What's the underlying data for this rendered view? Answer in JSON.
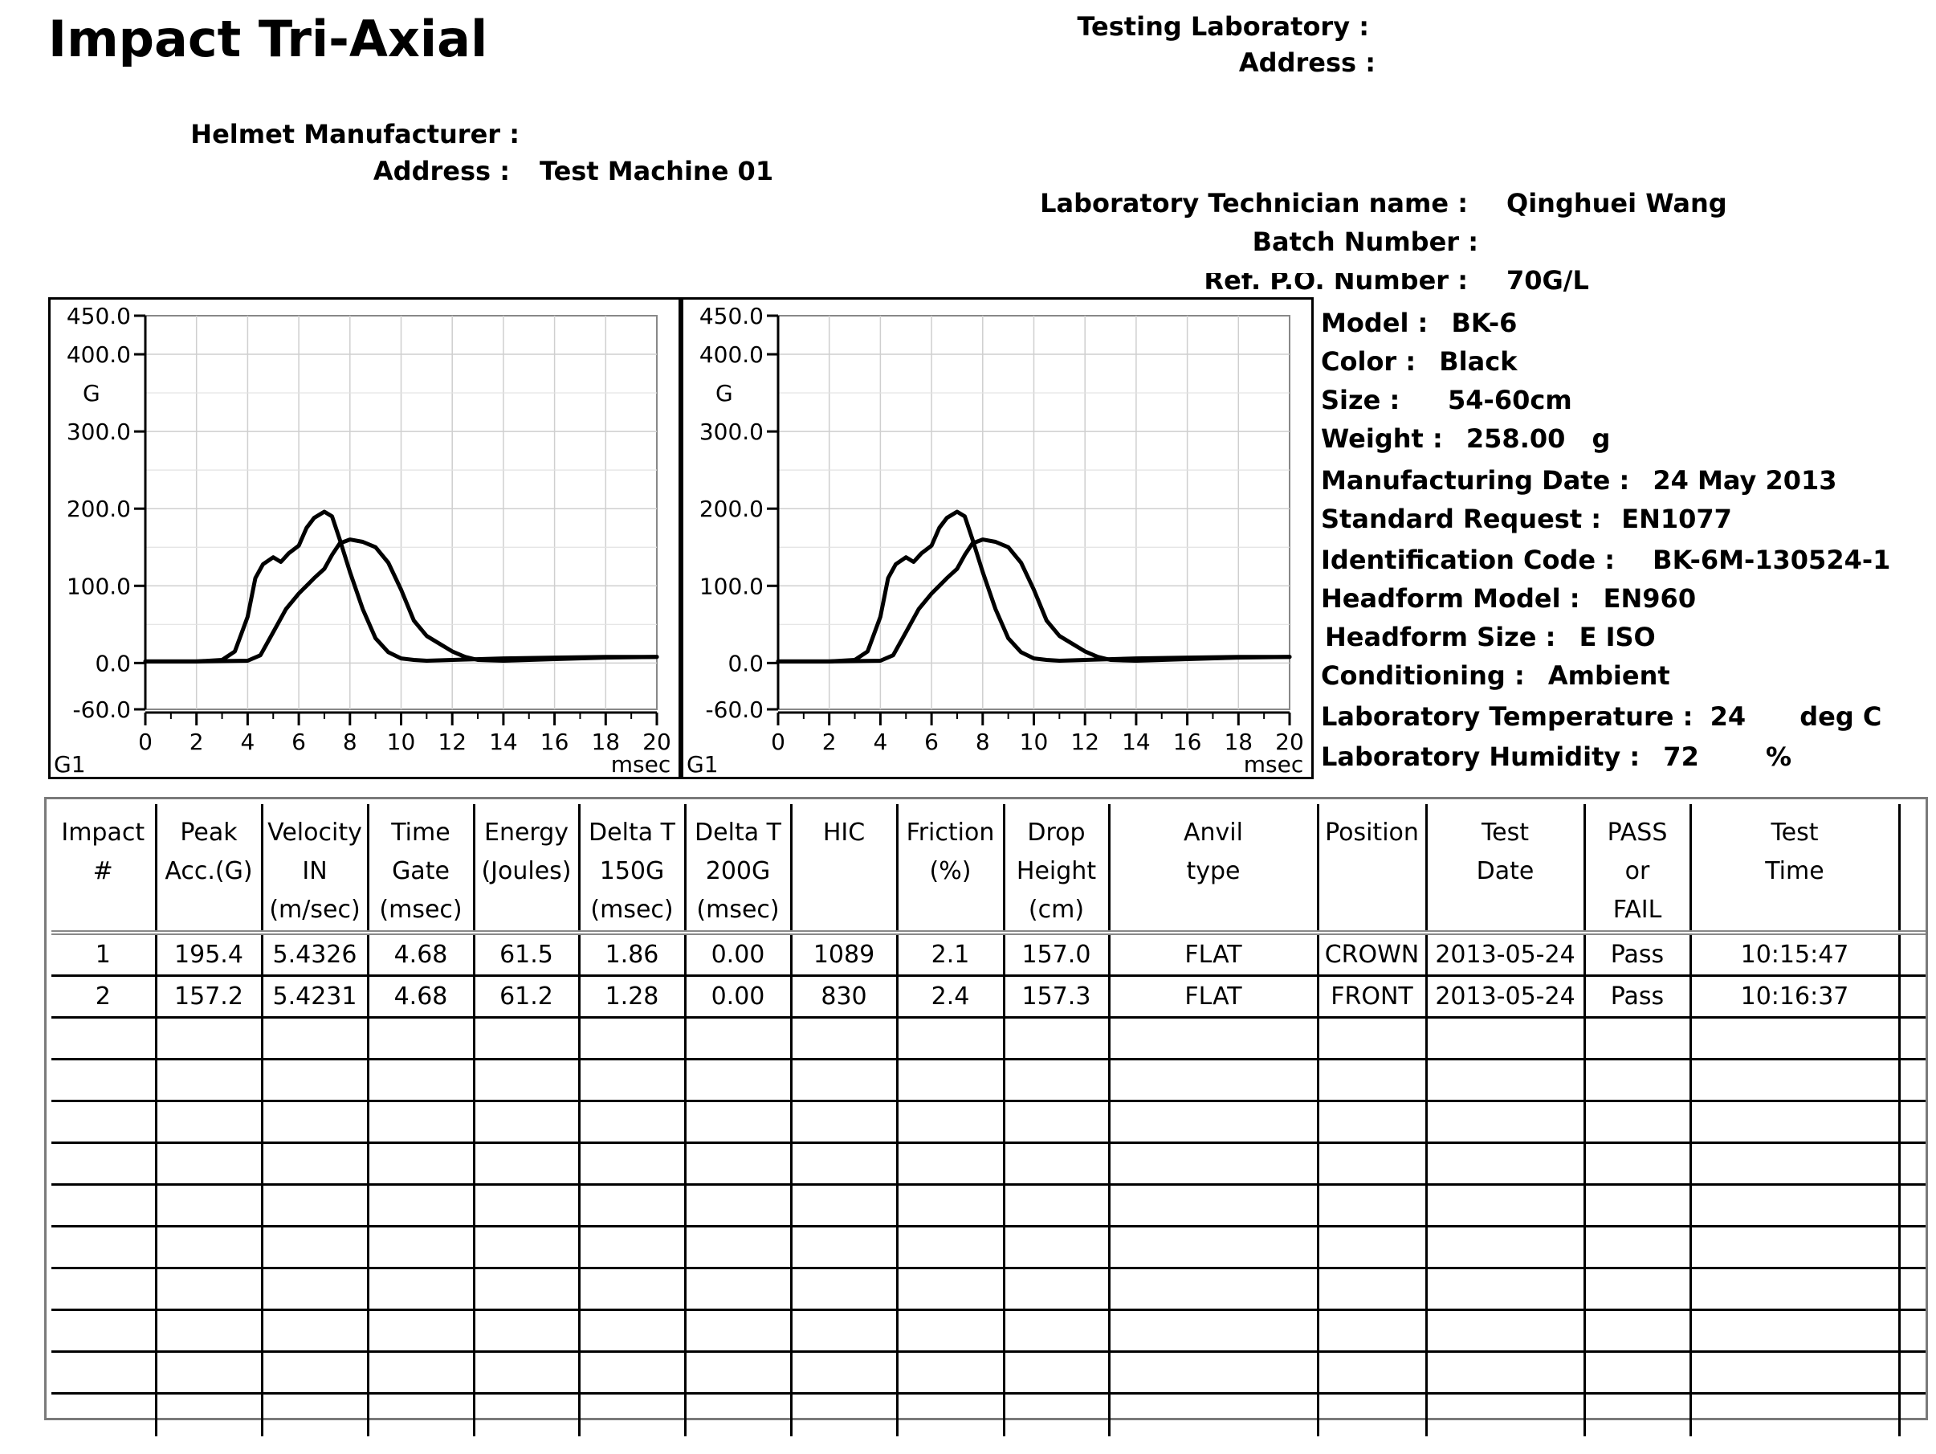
{
  "header": {
    "title": "Impact Tri-Axial",
    "testing_lab_label": "Testing Laboratory :",
    "lab_address_label": "Address :",
    "helmet_mfr_label": "Helmet Manufacturer :",
    "mfr_address_label": "Address :",
    "mfr_address_value": "Test Machine 01",
    "technician_label": "Laboratory Technician name :",
    "technician_value": "Qinghuei Wang",
    "batch_label": "Batch Number :",
    "ref_po_label": "Ref. P.O. Number :",
    "ref_po_value": "70G/L"
  },
  "specs": {
    "model_label": "Model :",
    "model_value": "BK-6",
    "color_label": "Color :",
    "color_value": "Black",
    "size_label": "Size :",
    "size_value": "54-60cm",
    "weight_label": "Weight :",
    "weight_value": "258.00",
    "weight_unit": "g",
    "mfg_date_label": "Manufacturing Date :",
    "mfg_date_value": "24 May 2013",
    "standard_label": "Standard Request :",
    "standard_value": "EN1077",
    "id_code_label": "Identification Code :",
    "id_code_value": "BK-6M-130524-1",
    "headform_model_label": "Headform Model :",
    "headform_model_value": "EN960",
    "headform_size_label": "Headform Size :",
    "headform_size_value": "E ISO",
    "conditioning_label": "Conditioning :",
    "conditioning_value": "Ambient",
    "temp_label": "Laboratory Temperature :",
    "temp_value": "24",
    "temp_unit": "deg C",
    "humidity_label": "Laboratory Humidity :",
    "humidity_value": "72",
    "humidity_unit": "%"
  },
  "chart_data": [
    {
      "type": "line",
      "title": "",
      "ylabel": "G",
      "xlabel": "msec",
      "corner_label": "G1",
      "xlim": [
        0,
        20
      ],
      "ylim": [
        -60,
        450
      ],
      "y_ticks": [
        "450.0",
        "400.0",
        "300.0",
        "200.0",
        "100.0",
        "0.0",
        "-60.0"
      ],
      "x_ticks": [
        "0",
        "2",
        "4",
        "6",
        "8",
        "10",
        "12",
        "14",
        "16",
        "18",
        "20"
      ],
      "grid": true,
      "series": [
        {
          "x": [
            0,
            2,
            3,
            3.5,
            4,
            4.3,
            4.6,
            5,
            5.3,
            5.6,
            6,
            6.3,
            6.6,
            7,
            7.3,
            7.6,
            8,
            8.5,
            9,
            9.5,
            10,
            10.5,
            11,
            12,
            14,
            16,
            18,
            20
          ],
          "y": [
            2,
            2,
            4,
            15,
            60,
            110,
            128,
            137,
            131,
            142,
            152,
            175,
            188,
            196,
            190,
            160,
            118,
            70,
            32,
            14,
            6,
            4,
            3,
            4,
            6,
            7,
            8,
            8
          ]
        },
        {
          "x": [
            0,
            2,
            4,
            4.5,
            5,
            5.5,
            6,
            6.3,
            6.6,
            7,
            7.3,
            7.6,
            8,
            8.5,
            9,
            9.5,
            10,
            10.5,
            11,
            11.5,
            12,
            12.5,
            13,
            14,
            16,
            18,
            20
          ],
          "y": [
            2,
            2,
            3,
            10,
            40,
            70,
            90,
            100,
            110,
            122,
            140,
            155,
            160,
            157,
            150,
            130,
            95,
            55,
            35,
            25,
            15,
            8,
            4,
            3,
            5,
            7,
            8
          ]
        }
      ]
    },
    {
      "type": "line",
      "title": "",
      "ylabel": "G",
      "xlabel": "msec",
      "corner_label": "G1",
      "xlim": [
        0,
        20
      ],
      "ylim": [
        -60,
        450
      ],
      "y_ticks": [
        "450.0",
        "400.0",
        "300.0",
        "200.0",
        "100.0",
        "0.0",
        "-60.0"
      ],
      "x_ticks": [
        "0",
        "2",
        "4",
        "6",
        "8",
        "10",
        "12",
        "14",
        "16",
        "18",
        "20"
      ],
      "grid": true,
      "series": [
        {
          "x": [
            0,
            2,
            3,
            3.5,
            4,
            4.3,
            4.6,
            5,
            5.3,
            5.6,
            6,
            6.3,
            6.6,
            7,
            7.3,
            7.6,
            8,
            8.5,
            9,
            9.5,
            10,
            10.5,
            11,
            12,
            14,
            16,
            18,
            20
          ],
          "y": [
            2,
            2,
            4,
            15,
            60,
            110,
            128,
            137,
            131,
            142,
            152,
            175,
            188,
            196,
            190,
            160,
            118,
            70,
            32,
            14,
            6,
            4,
            3,
            4,
            6,
            7,
            8,
            8
          ]
        },
        {
          "x": [
            0,
            2,
            4,
            4.5,
            5,
            5.5,
            6,
            6.3,
            6.6,
            7,
            7.3,
            7.6,
            8,
            8.5,
            9,
            9.5,
            10,
            10.5,
            11,
            11.5,
            12,
            12.5,
            13,
            14,
            16,
            18,
            20
          ],
          "y": [
            2,
            2,
            3,
            10,
            40,
            70,
            90,
            100,
            110,
            122,
            140,
            155,
            160,
            157,
            150,
            130,
            95,
            55,
            35,
            25,
            15,
            8,
            4,
            3,
            5,
            7,
            8
          ]
        }
      ]
    }
  ],
  "table": {
    "columns": [
      [
        "Impact",
        "#",
        ""
      ],
      [
        "Peak",
        "Acc.(G)",
        ""
      ],
      [
        "Velocity",
        "IN",
        "(m/sec)"
      ],
      [
        "Time",
        "Gate",
        "(msec)"
      ],
      [
        "Energy",
        "(Joules)",
        ""
      ],
      [
        "Delta T",
        "150G",
        "(msec)"
      ],
      [
        "Delta T",
        "200G",
        "(msec)"
      ],
      [
        "HIC",
        "",
        ""
      ],
      [
        "Friction",
        "(%)",
        ""
      ],
      [
        "Drop",
        "Height",
        "(cm)"
      ],
      [
        "Anvil",
        "type",
        ""
      ],
      [
        "Position",
        "",
        ""
      ],
      [
        "Test",
        "Date",
        ""
      ],
      [
        "PASS",
        "or",
        "FAIL"
      ],
      [
        "Test",
        "Time",
        ""
      ],
      [
        "",
        "",
        ""
      ]
    ],
    "rows": [
      [
        "1",
        "195.4",
        "5.4326",
        "4.68",
        "61.5",
        "1.86",
        "0.00",
        "1089",
        "2.1",
        "157.0",
        "FLAT",
        "CROWN",
        "2013-05-24",
        "Pass",
        "10:15:47",
        ""
      ],
      [
        "2",
        "157.2",
        "5.4231",
        "4.68",
        "61.2",
        "1.28",
        "0.00",
        "830",
        "2.4",
        "157.3",
        "FLAT",
        "FRONT",
        "2013-05-24",
        "Pass",
        "10:16:37",
        ""
      ]
    ],
    "empty_rows": 10
  }
}
